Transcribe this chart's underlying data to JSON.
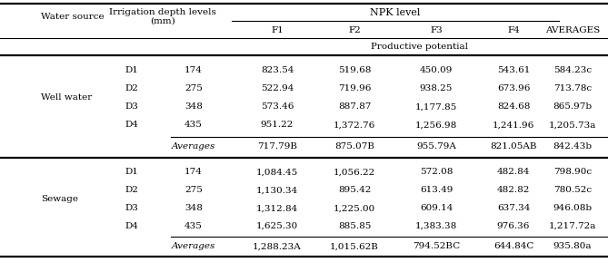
{
  "well_water_rows": [
    [
      "D1",
      "174",
      "823.54",
      "519.68",
      "450.09",
      "543.61",
      "584.23c"
    ],
    [
      "D2",
      "275",
      "522.94",
      "719.96",
      "938.25",
      "673.96",
      "713.78c"
    ],
    [
      "D3",
      "348",
      "573.46",
      "887.87",
      "1,177.85",
      "824.68",
      "865.97b"
    ],
    [
      "D4",
      "435",
      "951.22",
      "1,372.76",
      "1,256.98",
      "1,241.96",
      "1,205.73a"
    ]
  ],
  "well_water_avg": [
    "717.79B",
    "875.07B",
    "955.79A",
    "821.05AB",
    "842.43b"
  ],
  "sewage_rows": [
    [
      "D1",
      "174",
      "1,084.45",
      "1,056.22",
      "572.08",
      "482.84",
      "798.90c"
    ],
    [
      "D2",
      "275",
      "1,130.34",
      "895.42",
      "613.49",
      "482.82",
      "780.52c"
    ],
    [
      "D3",
      "348",
      "1,312.84",
      "1,225.00",
      "609.14",
      "637.34",
      "946.08b"
    ],
    [
      "D4",
      "435",
      "1,625.30",
      "885.85",
      "1,383.38",
      "976.36",
      "1,217.72a"
    ]
  ],
  "sewage_avg": [
    "1,288.23A",
    "1,015.62B",
    "794.52BC",
    "644.84C",
    "935.80a"
  ],
  "bg_color": "#ffffff"
}
